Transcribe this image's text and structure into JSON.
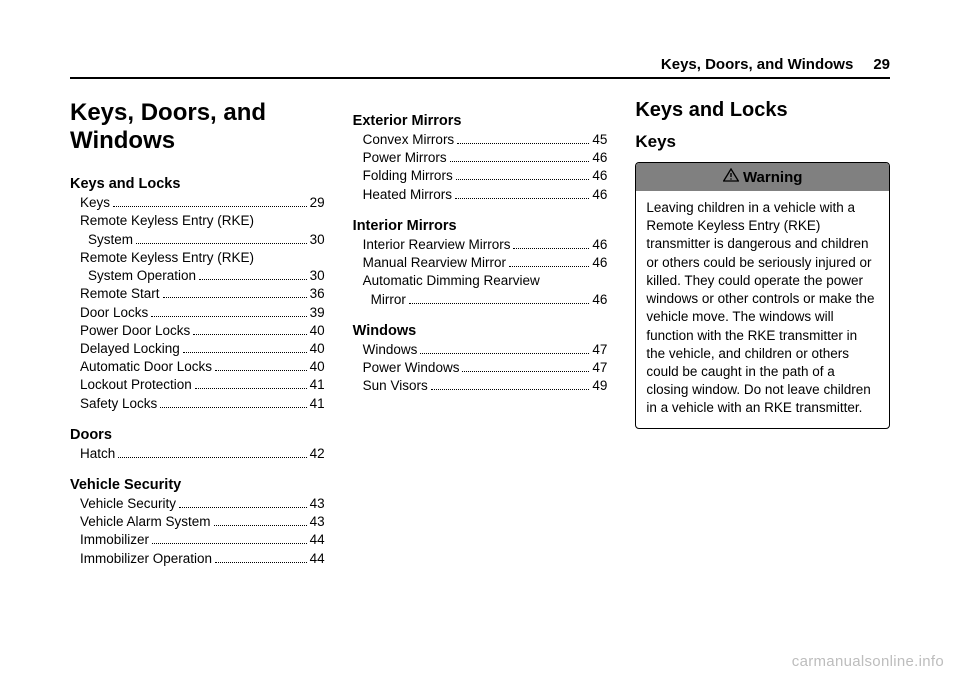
{
  "header": {
    "title": "Keys, Doors, and Windows",
    "page": "29"
  },
  "col1": {
    "chapter_title": "Keys, Doors, and Windows",
    "sections": [
      {
        "title": "Keys and Locks",
        "entries": [
          {
            "lines": [
              "Keys"
            ],
            "page": "29"
          },
          {
            "lines": [
              "Remote Keyless Entry (RKE)",
              "System"
            ],
            "page": "30"
          },
          {
            "lines": [
              "Remote Keyless Entry (RKE)",
              "System Operation"
            ],
            "page": "30"
          },
          {
            "lines": [
              "Remote Start"
            ],
            "page": "36"
          },
          {
            "lines": [
              "Door Locks"
            ],
            "page": "39"
          },
          {
            "lines": [
              "Power Door Locks"
            ],
            "page": "40"
          },
          {
            "lines": [
              "Delayed Locking"
            ],
            "page": "40"
          },
          {
            "lines": [
              "Automatic Door Locks"
            ],
            "page": "40"
          },
          {
            "lines": [
              "Lockout Protection"
            ],
            "page": "41"
          },
          {
            "lines": [
              "Safety Locks"
            ],
            "page": "41"
          }
        ]
      },
      {
        "title": "Doors",
        "entries": [
          {
            "lines": [
              "Hatch"
            ],
            "page": "42"
          }
        ]
      },
      {
        "title": "Vehicle Security",
        "entries": [
          {
            "lines": [
              "Vehicle Security"
            ],
            "page": "43"
          },
          {
            "lines": [
              "Vehicle Alarm System"
            ],
            "page": "43"
          },
          {
            "lines": [
              "Immobilizer"
            ],
            "page": "44"
          },
          {
            "lines": [
              "Immobilizer Operation"
            ],
            "page": "44"
          }
        ]
      }
    ]
  },
  "col2": {
    "sections": [
      {
        "title": "Exterior Mirrors",
        "entries": [
          {
            "lines": [
              "Convex Mirrors"
            ],
            "page": "45"
          },
          {
            "lines": [
              "Power Mirrors"
            ],
            "page": "46"
          },
          {
            "lines": [
              "Folding Mirrors"
            ],
            "page": "46"
          },
          {
            "lines": [
              "Heated Mirrors"
            ],
            "page": "46"
          }
        ]
      },
      {
        "title": "Interior Mirrors",
        "entries": [
          {
            "lines": [
              "Interior Rearview Mirrors"
            ],
            "page": "46"
          },
          {
            "lines": [
              "Manual Rearview Mirror"
            ],
            "page": "46"
          },
          {
            "lines": [
              "Automatic Dimming Rearview",
              "Mirror"
            ],
            "page": "46"
          }
        ]
      },
      {
        "title": "Windows",
        "entries": [
          {
            "lines": [
              "Windows"
            ],
            "page": "47"
          },
          {
            "lines": [
              "Power Windows"
            ],
            "page": "47"
          },
          {
            "lines": [
              "Sun Visors"
            ],
            "page": "49"
          }
        ]
      }
    ]
  },
  "col3": {
    "big_section": "Keys and Locks",
    "sub_heading": "Keys",
    "warning_label": "Warning",
    "warning_text": "Leaving children in a vehicle with a Remote Keyless Entry (RKE) transmitter is dangerous and children or others could be seriously injured or killed. They could operate the power windows or other controls or make the vehicle move. The windows will function with the RKE transmitter in the vehicle, and children or others could be caught in the path of a closing window. Do not leave children in a vehicle with an RKE transmitter."
  },
  "watermark": "carmanualsonline.info"
}
